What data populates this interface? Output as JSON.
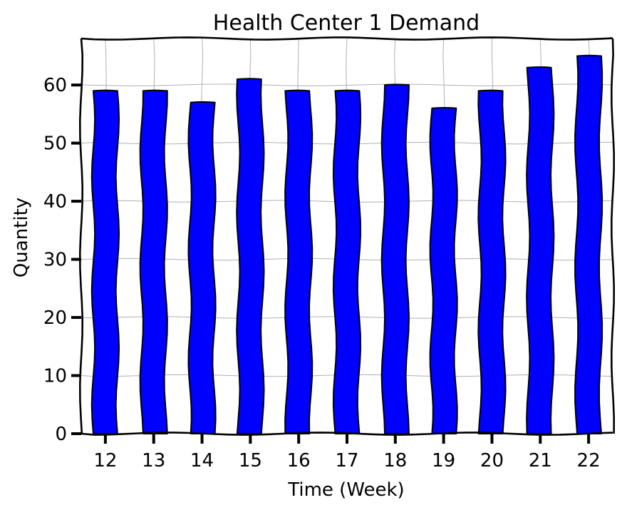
{
  "chart_data": {
    "type": "bar",
    "title": "Health Center 1 Demand",
    "xlabel": "Time (Week)",
    "ylabel": "Quantity",
    "categories": [
      "12",
      "13",
      "14",
      "15",
      "16",
      "17",
      "18",
      "19",
      "20",
      "21",
      "22"
    ],
    "values": [
      59,
      59,
      57,
      61,
      59,
      59,
      60,
      56,
      59,
      63,
      65
    ],
    "ylim": [
      0,
      68
    ],
    "yticks": [
      0,
      10,
      20,
      30,
      40,
      50,
      60
    ],
    "grid": true,
    "legend": "none",
    "colors": {
      "bar_fill": "#0000ff",
      "bar_edge": "#000000",
      "grid": "#b0b0b0",
      "axis": "#000000",
      "background": "#ffffff"
    }
  }
}
